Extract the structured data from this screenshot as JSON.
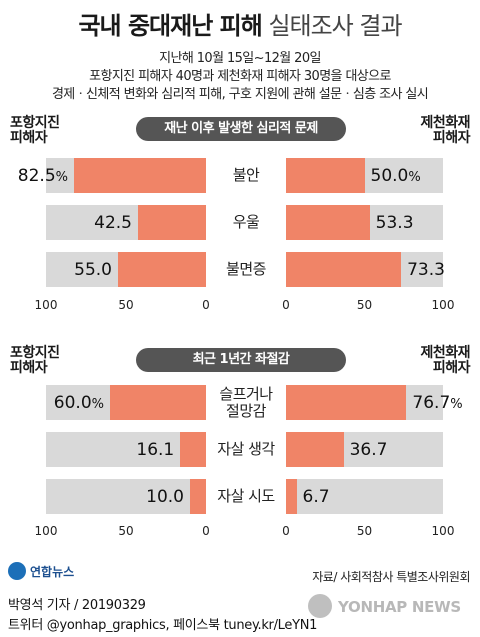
{
  "title": {
    "bold": "국내 중대재난 피해",
    "light": "실태조사 결과"
  },
  "subtitle": [
    "지난해 10월 15일~12월 20일",
    "포항지진 피해자 40명과 제천화재 피해자 30명을 대상으로",
    "경제ㆍ신체적 변화와 심리적 피해, 구호 지원에 관해 설문ㆍ심층 조사 실시"
  ],
  "left_group": [
    "포항지진",
    "피해자"
  ],
  "right_group": [
    "제천화재",
    "피해자"
  ],
  "colors": {
    "bar": "#f08467",
    "track": "#d9d9d9",
    "pill": "#555555"
  },
  "chart_data": [
    {
      "type": "bar",
      "title": "재난 이후 발생한 심리적 문제",
      "categories": [
        "불안",
        "우울",
        "불면증"
      ],
      "series": [
        {
          "name": "포항지진 피해자",
          "values": [
            82.5,
            42.5,
            55.0
          ],
          "labels": [
            "82.5",
            "42.5",
            "55.0"
          ]
        },
        {
          "name": "제천화재 피해자",
          "values": [
            50.0,
            53.3,
            73.3
          ],
          "labels": [
            "50.0",
            "53.3",
            "73.3"
          ]
        }
      ],
      "unit": "%",
      "xlim": [
        0,
        100
      ],
      "ticks_left": [
        "100",
        "50",
        "0"
      ],
      "ticks_right": [
        "0",
        "50",
        "100"
      ]
    },
    {
      "type": "bar",
      "title": "최근 1년간 좌절감",
      "categories": [
        "슬프거나 절망감",
        "자살 생각",
        "자살 시도"
      ],
      "category_lines": [
        [
          "슬프거나",
          "절망감"
        ],
        [
          "자살 생각"
        ],
        [
          "자살 시도"
        ]
      ],
      "series": [
        {
          "name": "포항지진 피해자",
          "values": [
            60.0,
            16.1,
            10.0
          ],
          "labels": [
            "60.0",
            "16.1",
            "10.0"
          ]
        },
        {
          "name": "제천화재 피해자",
          "values": [
            76.7,
            36.7,
            6.7
          ],
          "labels": [
            "76.7",
            "36.7",
            "6.7"
          ]
        }
      ],
      "unit": "%",
      "xlim": [
        0,
        100
      ],
      "ticks_left": [
        "100",
        "50",
        "0"
      ],
      "ticks_right": [
        "0",
        "50",
        "100"
      ]
    }
  ],
  "source": "자료/ 사회적참사 특별조사위원회",
  "logo": "연합뉴스",
  "credit": [
    "박영석 기자 / 20190329",
    "트위터 @yonhap_graphics, 페이스북 tuney.kr/LeYN1"
  ],
  "watermark": "YONHAP NEWS"
}
